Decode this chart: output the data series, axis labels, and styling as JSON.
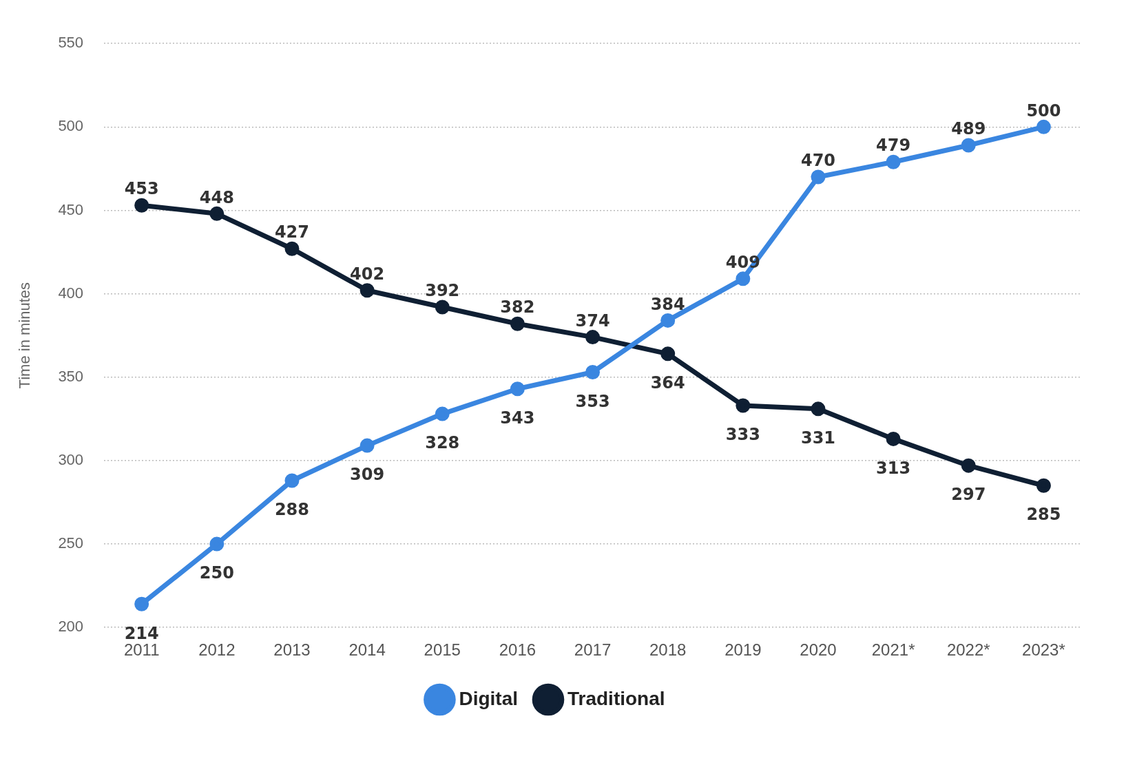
{
  "chart_data": {
    "type": "line",
    "ylabel": "Time in minutes",
    "categories": [
      "2011",
      "2012",
      "2013",
      "2014",
      "2015",
      "2016",
      "2017",
      "2018",
      "2019",
      "2020",
      "2021*",
      "2022*",
      "2023*"
    ],
    "series": [
      {
        "name": "Digital",
        "color": "#3a86e0",
        "values": [
          214,
          250,
          288,
          309,
          328,
          343,
          353,
          384,
          409,
          470,
          479,
          489,
          500
        ]
      },
      {
        "name": "Traditional",
        "color": "#0f1f33",
        "values": [
          453,
          448,
          427,
          402,
          392,
          382,
          374,
          364,
          333,
          331,
          313,
          297,
          285
        ]
      }
    ],
    "ylim": [
      200,
      550
    ],
    "yticks": [
      200,
      250,
      300,
      350,
      400,
      450,
      500,
      550
    ],
    "grid": "y",
    "legend": "bottom",
    "marker": "circle",
    "line_style": "solid",
    "data_labels": true
  }
}
